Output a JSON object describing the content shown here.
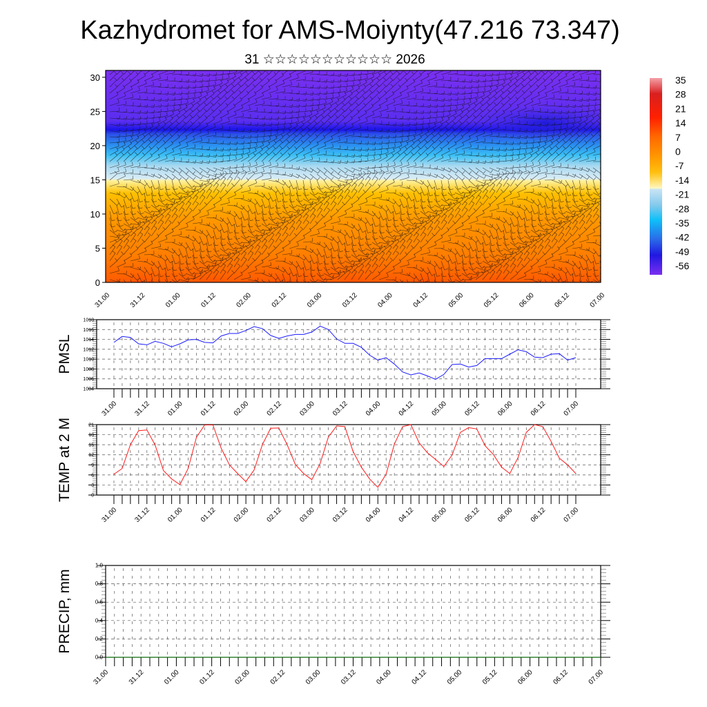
{
  "title": "Kazhydromet for AMS-Moiynty(47.216 73.347)",
  "subtitle": "31 ☆☆☆☆☆☆☆☆☆☆☆ 2026",
  "colors": {
    "pmsl": "#1a1aff",
    "temp": "#ff1a1a",
    "precip": "#007700"
  },
  "chart_data": [
    {
      "type": "heatmap",
      "name": "cross-section",
      "title": "",
      "y_ticks": [
        "0",
        "5",
        "10",
        "15",
        "20",
        "25",
        "30"
      ],
      "ylim": [
        0,
        31
      ],
      "x_labels": [
        "31.00",
        "31.12",
        "01.00",
        "01.12",
        "02.00",
        "02.12",
        "03.00",
        "03.12",
        "04.00",
        "04.12",
        "05.00",
        "05.12",
        "06.00",
        "06.12",
        "07.00"
      ],
      "colorbar_labels": [
        "35",
        "28",
        "21",
        "14",
        "7",
        "0",
        "-7",
        "-14",
        "-21",
        "-28",
        "-35",
        "-42",
        "-49",
        "-56"
      ],
      "colorbar_range": [
        -63,
        38
      ]
    },
    {
      "type": "line",
      "name": "pmsl",
      "ylabel": "PMSL",
      "ylim": [
        1004,
        1018
      ],
      "y_ticks": [
        "1004",
        "1006",
        "1008",
        "1010",
        "1012",
        "1014",
        "1016",
        "1018"
      ],
      "x_labels": [
        "31.00",
        "31.12",
        "01.00",
        "01.12",
        "02.00",
        "02.12",
        "03.00",
        "03.12",
        "04.00",
        "04.12",
        "05.00",
        "05.12",
        "06.00",
        "06.12",
        "07.00"
      ],
      "step_hours": 3,
      "values": [
        1013.4,
        1014.6,
        1014.4,
        1013.1,
        1012.9,
        1013.6,
        1013.2,
        1012.5,
        1013.1,
        1013.9,
        1014.0,
        1013.4,
        1013.3,
        1014.7,
        1015.2,
        1015.2,
        1015.8,
        1016.6,
        1016.2,
        1014.8,
        1014.2,
        1014.7,
        1015.0,
        1015.0,
        1015.5,
        1016.7,
        1016.0,
        1014.1,
        1013.2,
        1013.2,
        1012.4,
        1010.8,
        1009.8,
        1010.3,
        1009.0,
        1007.4,
        1006.8,
        1007.2,
        1006.6,
        1005.9,
        1006.9,
        1008.9,
        1009.0,
        1008.4,
        1008.7,
        1010.1,
        1010.1,
        1010.1,
        1011.0,
        1011.9,
        1011.5,
        1010.4,
        1010.3,
        1011.0,
        1011.1,
        1009.8,
        1010.3
      ]
    },
    {
      "type": "line",
      "name": "temp",
      "ylabel": "TEMP at 2 M",
      "ylim": [
        0,
        21
      ],
      "y_ticks": [
        "0",
        "3",
        "6",
        "9",
        "12",
        "15",
        "18",
        "21"
      ],
      "x_labels": [
        "31.00",
        "31.12",
        "01.00",
        "01.12",
        "02.00",
        "02.12",
        "03.00",
        "03.12",
        "04.00",
        "04.12",
        "05.00",
        "05.12",
        "06.00",
        "06.12",
        "07.00"
      ],
      "step_hours": 3,
      "values": [
        6.2,
        7.9,
        15.0,
        19.2,
        19.4,
        14.9,
        7.3,
        4.8,
        3.1,
        7.9,
        17.2,
        20.9,
        20.9,
        14.0,
        9.0,
        6.4,
        4.0,
        7.5,
        15.0,
        19.9,
        20.0,
        15.0,
        9.1,
        6.4,
        4.6,
        9.4,
        17.3,
        20.6,
        20.4,
        13.0,
        8.3,
        4.8,
        2.3,
        6.2,
        15.2,
        20.4,
        21.0,
        15.6,
        12.6,
        10.6,
        8.5,
        11.9,
        18.7,
        20.1,
        19.7,
        14.7,
        12.1,
        8.3,
        6.4,
        11.2,
        18.7,
        21.0,
        20.4,
        16.0,
        11.0,
        9.0,
        6.4
      ]
    },
    {
      "type": "line",
      "name": "precip",
      "ylabel": "PRECIP, mm",
      "ylim": [
        0,
        1
      ],
      "y_ticks": [
        "0.0",
        "0.2",
        "0.4",
        "0.6",
        "0.8",
        "1.0"
      ],
      "x_labels": [
        "31.00",
        "31.12",
        "01.00",
        "01.12",
        "02.00",
        "02.12",
        "03.00",
        "03.12",
        "04.00",
        "04.12",
        "05.00",
        "05.12",
        "06.00",
        "06.12",
        "07.00"
      ],
      "step_hours": 3,
      "values": [
        0,
        0,
        0,
        0,
        0,
        0,
        0,
        0,
        0,
        0,
        0,
        0,
        0,
        0,
        0,
        0,
        0,
        0,
        0,
        0,
        0,
        0,
        0,
        0,
        0,
        0,
        0,
        0,
        0,
        0,
        0,
        0,
        0,
        0,
        0,
        0,
        0,
        0,
        0,
        0,
        0,
        0,
        0,
        0,
        0,
        0,
        0,
        0,
        0,
        0,
        0,
        0,
        0,
        0,
        0,
        0,
        0
      ]
    }
  ]
}
